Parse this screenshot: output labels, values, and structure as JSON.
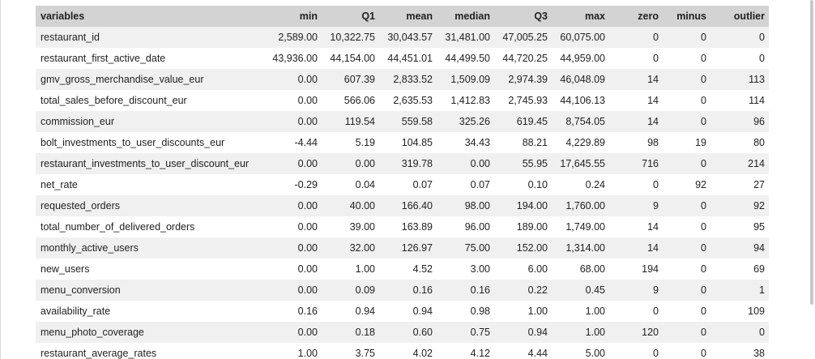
{
  "columns": [
    "variables",
    "min",
    "Q1",
    "mean",
    "median",
    "Q3",
    "max",
    "zero",
    "minus",
    "outlier"
  ],
  "rows": [
    [
      "restaurant_id",
      "2,589.00",
      "10,322.75",
      "30,043.57",
      "31,481.00",
      "47,005.25",
      "60,075.00",
      "0",
      "0",
      "0"
    ],
    [
      "restaurant_first_active_date",
      "43,936.00",
      "44,154.00",
      "44,451.01",
      "44,499.50",
      "44,720.25",
      "44,959.00",
      "0",
      "0",
      "0"
    ],
    [
      "gmv_gross_merchandise_value_eur",
      "0.00",
      "607.39",
      "2,833.52",
      "1,509.09",
      "2,974.39",
      "46,048.09",
      "14",
      "0",
      "113"
    ],
    [
      "total_sales_before_discount_eur",
      "0.00",
      "566.06",
      "2,635.53",
      "1,412.83",
      "2,745.93",
      "44,106.13",
      "14",
      "0",
      "114"
    ],
    [
      "commission_eur",
      "0.00",
      "119.54",
      "559.58",
      "325.26",
      "619.45",
      "8,754.05",
      "14",
      "0",
      "96"
    ],
    [
      "bolt_investments_to_user_discounts_eur",
      "-4.44",
      "5.19",
      "104.85",
      "34.43",
      "88.21",
      "4,229.89",
      "98",
      "19",
      "80"
    ],
    [
      "restaurant_investments_to_user_discount_eur",
      "0.00",
      "0.00",
      "319.78",
      "0.00",
      "55.95",
      "17,645.55",
      "716",
      "0",
      "214"
    ],
    [
      "net_rate",
      "-0.29",
      "0.04",
      "0.07",
      "0.07",
      "0.10",
      "0.24",
      "0",
      "92",
      "27"
    ],
    [
      "requested_orders",
      "0.00",
      "40.00",
      "166.40",
      "98.00",
      "194.00",
      "1,760.00",
      "9",
      "0",
      "92"
    ],
    [
      "total_number_of_delivered_orders",
      "0.00",
      "39.00",
      "163.89",
      "96.00",
      "189.00",
      "1,749.00",
      "14",
      "0",
      "95"
    ],
    [
      "monthly_active_users",
      "0.00",
      "32.00",
      "126.97",
      "75.00",
      "152.00",
      "1,314.00",
      "14",
      "0",
      "94"
    ],
    [
      "new_users",
      "0.00",
      "1.00",
      "4.52",
      "3.00",
      "6.00",
      "68.00",
      "194",
      "0",
      "69"
    ],
    [
      "menu_conversion",
      "0.00",
      "0.09",
      "0.16",
      "0.16",
      "0.22",
      "0.45",
      "9",
      "0",
      "1"
    ],
    [
      "availability_rate",
      "0.16",
      "0.94",
      "0.94",
      "0.98",
      "1.00",
      "1.00",
      "0",
      "0",
      "109"
    ],
    [
      "menu_photo_coverage",
      "0.00",
      "0.18",
      "0.60",
      "0.75",
      "0.94",
      "1.00",
      "120",
      "0",
      "0"
    ],
    [
      "restaurant_average_rates",
      "1.00",
      "3.75",
      "4.02",
      "4.12",
      "4.44",
      "5.00",
      "0",
      "0",
      "38"
    ]
  ]
}
